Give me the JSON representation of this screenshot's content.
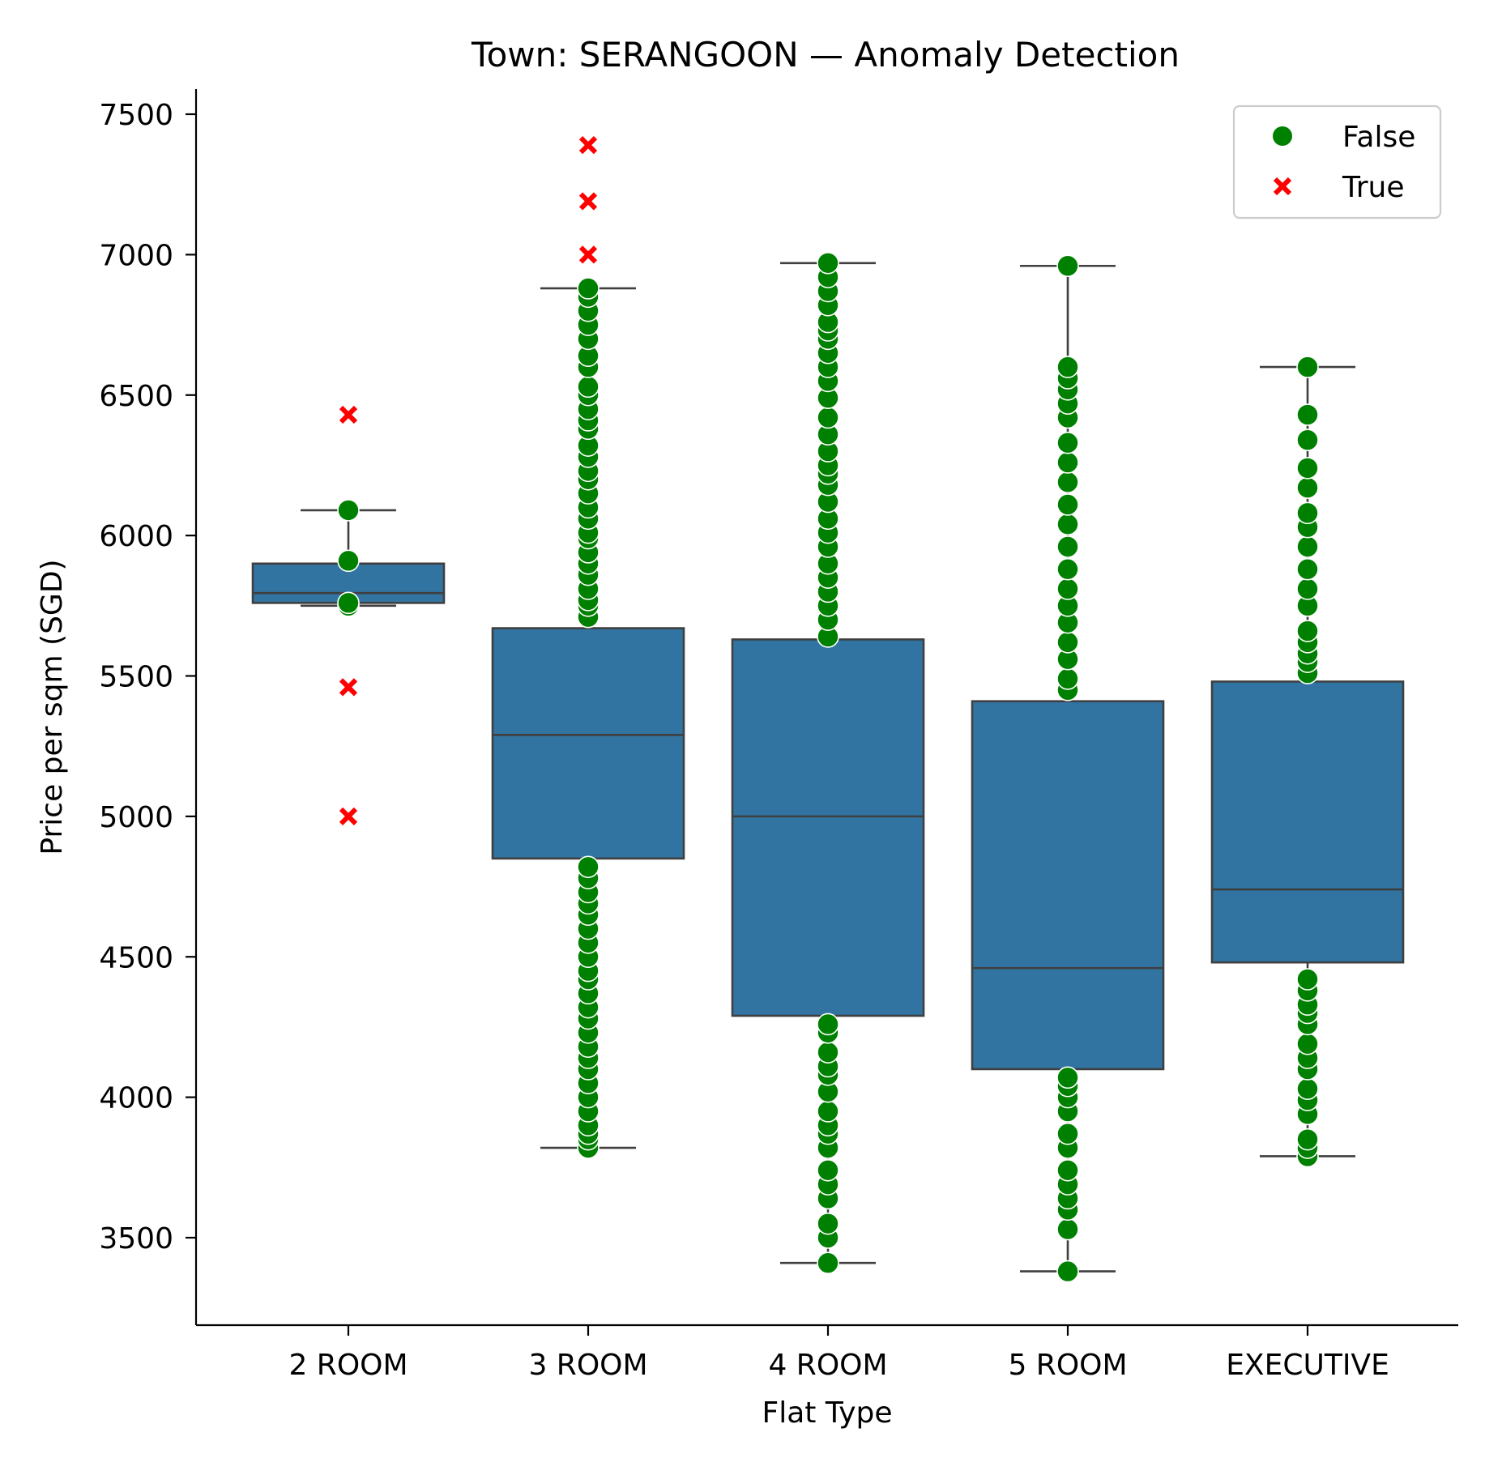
{
  "chart_data": {
    "type": "box",
    "title": "Town: SERANGOON — Anomaly Detection",
    "xlabel": "Flat Type",
    "ylabel": "Price per sqm (SGD)",
    "ylim": [
      3180,
      7590
    ],
    "yticks": [
      3500,
      4000,
      4500,
      5000,
      5500,
      6000,
      6500,
      7000,
      7500
    ],
    "categories": [
      "2 ROOM",
      "3 ROOM",
      "4 ROOM",
      "5 ROOM",
      "EXECUTIVE"
    ],
    "grid": false,
    "legend": {
      "position": "top-right",
      "entries": [
        {
          "label": "False",
          "marker": "circle",
          "color": "#008000"
        },
        {
          "label": "True",
          "marker": "x",
          "color": "#ff0000"
        }
      ]
    },
    "box_color": "#3274a1",
    "box_edge_color": "#3f3f3f",
    "boxes": [
      {
        "category": "2 ROOM",
        "whisker_low": 5750,
        "q1": 5760,
        "median": 5795,
        "q3": 5900,
        "whisker_high": 6090
      },
      {
        "category": "3 ROOM",
        "whisker_low": 3820,
        "q1": 4850,
        "median": 5290,
        "q3": 5670,
        "whisker_high": 6880
      },
      {
        "category": "4 ROOM",
        "whisker_low": 3410,
        "q1": 4290,
        "median": 5000,
        "q3": 5630,
        "whisker_high": 6970
      },
      {
        "category": "5 ROOM",
        "whisker_low": 3380,
        "q1": 4100,
        "median": 4460,
        "q3": 5410,
        "whisker_high": 6960
      },
      {
        "category": "EXECUTIVE",
        "whisker_low": 3790,
        "q1": 4480,
        "median": 4740,
        "q3": 5480,
        "whisker_high": 6600
      }
    ],
    "points": [
      {
        "category": "2 ROOM",
        "anomaly": false,
        "values": [
          5750,
          5760,
          5910,
          6090
        ]
      },
      {
        "category": "2 ROOM",
        "anomaly": true,
        "values": [
          5000,
          5460,
          6430
        ]
      },
      {
        "category": "3 ROOM",
        "anomaly": false,
        "values": [
          3820,
          3850,
          3870,
          3900,
          3950,
          4000,
          4050,
          4100,
          4140,
          4180,
          4230,
          4280,
          4320,
          4370,
          4420,
          4450,
          4500,
          4550,
          4600,
          4650,
          4690,
          4730,
          4780,
          4820,
          5710,
          5750,
          5770,
          5810,
          5860,
          5900,
          5940,
          5990,
          6010,
          6060,
          6100,
          6150,
          6200,
          6230,
          6280,
          6320,
          6380,
          6410,
          6450,
          6500,
          6530,
          6600,
          6640,
          6700,
          6750,
          6800,
          6850,
          6880
        ]
      },
      {
        "category": "3 ROOM",
        "anomaly": true,
        "values": [
          7000,
          7190,
          7390
        ]
      },
      {
        "category": "4 ROOM",
        "anomaly": false,
        "values": [
          3410,
          3500,
          3550,
          3640,
          3690,
          3740,
          3820,
          3870,
          3900,
          3950,
          4020,
          4080,
          4110,
          4160,
          4230,
          4260,
          5640,
          5700,
          5750,
          5800,
          5850,
          5900,
          5960,
          6010,
          6060,
          6120,
          6180,
          6220,
          6250,
          6300,
          6360,
          6420,
          6490,
          6550,
          6600,
          6650,
          6700,
          6730,
          6760,
          6820,
          6870,
          6920,
          6970
        ]
      },
      {
        "category": "5 ROOM",
        "anomaly": false,
        "values": [
          3380,
          3530,
          3600,
          3640,
          3690,
          3740,
          3820,
          3870,
          3950,
          4000,
          4040,
          4070,
          5450,
          5490,
          5560,
          5620,
          5690,
          5750,
          5810,
          5880,
          5960,
          6040,
          6110,
          6190,
          6260,
          6330,
          6420,
          6470,
          6520,
          6560,
          6600,
          6960
        ]
      },
      {
        "category": "EXECUTIVE",
        "anomaly": false,
        "values": [
          3790,
          3820,
          3850,
          3940,
          3990,
          4030,
          4100,
          4140,
          4190,
          4260,
          4300,
          4330,
          4380,
          4420,
          5510,
          5550,
          5580,
          5620,
          5660,
          5750,
          5810,
          5880,
          5960,
          6030,
          6080,
          6170,
          6240,
          6340,
          6430,
          6600
        ]
      }
    ]
  }
}
